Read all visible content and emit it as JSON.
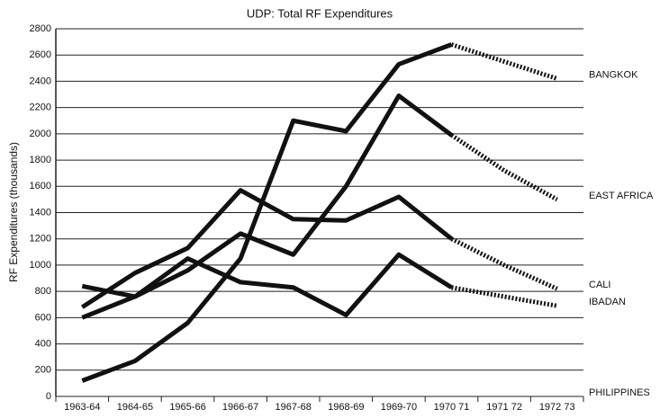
{
  "chart_data": {
    "type": "line",
    "title": "UDP: Total RF Expenditures",
    "y_label": "RF Expenditures (thousands)",
    "categories": [
      "1963-64",
      "1964-65",
      "1965-66",
      "1966-67",
      "1967-68",
      "1968-69",
      "1969-70",
      "1970 71",
      "1971 72",
      "1972 73"
    ],
    "ylim": [
      0,
      2800
    ],
    "yticks": [
      0,
      200,
      400,
      600,
      800,
      1000,
      1200,
      1400,
      1600,
      1800,
      2000,
      2200,
      2400,
      2600,
      2800
    ],
    "grid": true,
    "color": "#111111",
    "series": [
      {
        "name": "BANGKOK",
        "values": [
          120,
          270,
          560,
          1050,
          2100,
          2020,
          2530,
          2680,
          null,
          null
        ],
        "projected": [
          null,
          null,
          null,
          null,
          null,
          null,
          null,
          2680,
          2550,
          2420
        ]
      },
      {
        "name": "EAST AFRICA",
        "values": [
          600,
          760,
          960,
          1240,
          1080,
          1600,
          2290,
          1990,
          null,
          null
        ],
        "projected": [
          null,
          null,
          null,
          null,
          null,
          null,
          null,
          1990,
          1720,
          1500
        ]
      },
      {
        "name": "CALI",
        "values": [
          680,
          940,
          1130,
          1570,
          1350,
          1340,
          1520,
          1200,
          null,
          null
        ],
        "projected": [
          null,
          null,
          null,
          null,
          null,
          null,
          null,
          1200,
          1000,
          820
        ]
      },
      {
        "name": "IBADAN",
        "values": [
          840,
          760,
          1050,
          870,
          830,
          620,
          1080,
          830,
          null,
          null
        ],
        "projected": [
          null,
          null,
          null,
          null,
          null,
          null,
          null,
          830,
          760,
          690
        ]
      },
      {
        "name": "PHILIPPINES",
        "values": [
          null,
          null,
          null,
          null,
          null,
          null,
          null,
          null,
          null,
          null
        ],
        "projected": [
          null,
          null,
          null,
          null,
          null,
          null,
          null,
          null,
          null,
          null
        ]
      }
    ]
  }
}
